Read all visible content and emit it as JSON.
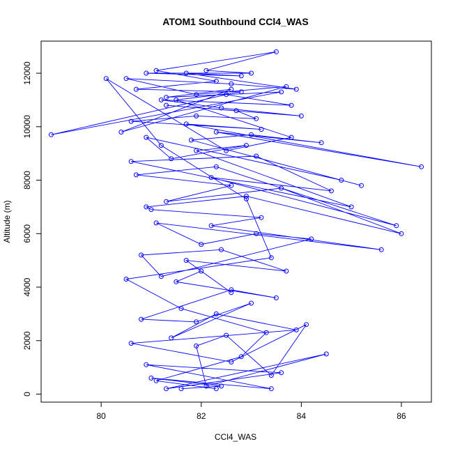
{
  "chart_data": {
    "type": "scatter",
    "title": "ATOM1 Southbound CCl4_WAS",
    "xlabel": "CCl4_WAS",
    "ylabel": "Altitude (m)",
    "xlim": [
      78.8,
      86.6
    ],
    "ylim": [
      -300,
      13200
    ],
    "x_ticks": [
      80,
      82,
      84,
      86
    ],
    "y_ticks": [
      0,
      2000,
      4000,
      6000,
      8000,
      10000,
      12000
    ],
    "grid": false,
    "legend": "none",
    "series_color": "#0000ff",
    "marker": "open-circle",
    "connected_lines": true,
    "series": [
      {
        "x": [
          81.6,
          82.4,
          81.0,
          83.4,
          80.9,
          83.6,
          81.3,
          84.5,
          82.1,
          81.9,
          82.5,
          83.4,
          84.1,
          82.6,
          80.6,
          83.9,
          82.3,
          81.4,
          83.0,
          81.9,
          80.8,
          82.6,
          83.5,
          81.5,
          82.0,
          82.6,
          81.7,
          83.7,
          82.4,
          80.8,
          81.2,
          84.2,
          83.1,
          82.0,
          81.1,
          85.6,
          82.2,
          83.2,
          81.0,
          80.9,
          82.9,
          86.0,
          83.6,
          81.3,
          82.6,
          80.7,
          82.3,
          85.9,
          82.2,
          84.6,
          83.1,
          80.6,
          85.0,
          81.9,
          82.9,
          81.4,
          80.9,
          84.8,
          85.2,
          81.8,
          83.0,
          84.4,
          82.3,
          86.4,
          81.7,
          83.2,
          80.6,
          81.9,
          83.1,
          82.7,
          81.3,
          84.0,
          82.4,
          81.2,
          83.8,
          82.5,
          79.0,
          83.6,
          81.3,
          82.6,
          80.4,
          83.7,
          81.9,
          80.5,
          82.6,
          83.9,
          81.7,
          82.8,
          80.9,
          83.0,
          82.1,
          83.5,
          81.1,
          82.3,
          80.7,
          82.8,
          81.5,
          83.8,
          82.5,
          80.1,
          81.2,
          82.9,
          83.4,
          80.5,
          81.6,
          83.3,
          82.8,
          81.1,
          82.3
        ],
        "y": [
          200,
          300,
          600,
          200,
          1100,
          800,
          200,
          1500,
          300,
          1800,
          2200,
          700,
          2600,
          1200,
          1900,
          2400,
          3000,
          2100,
          3400,
          2700,
          2800,
          3900,
          3600,
          4200,
          4600,
          3800,
          5000,
          4600,
          5400,
          5200,
          4400,
          5800,
          6000,
          5600,
          6400,
          5400,
          6300,
          6600,
          6900,
          7000,
          7400,
          6000,
          7700,
          7200,
          7800,
          8200,
          8500,
          6300,
          8100,
          7600,
          8900,
          8700,
          7000,
          9100,
          9300,
          8800,
          9600,
          8000,
          7800,
          9500,
          9700,
          9400,
          9800,
          8500,
          10100,
          9900,
          10200,
          10400,
          10300,
          10600,
          10800,
          10400,
          10700,
          11000,
          10800,
          11200,
          9700,
          11300,
          11100,
          11400,
          9800,
          11500,
          11200,
          11800,
          11600,
          11400,
          12000,
          11900,
          12000,
          12000,
          12100,
          12800,
          12100,
          11700,
          11400,
          11300,
          11000,
          9600,
          9100,
          11800,
          9300,
          7300,
          5100,
          4300,
          3200,
          2300,
          1400,
          500,
          200
        ]
      }
    ]
  }
}
